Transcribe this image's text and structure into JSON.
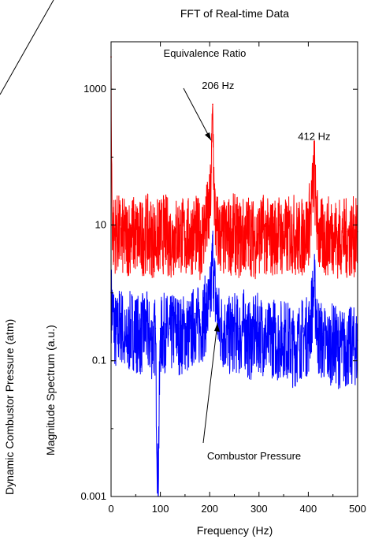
{
  "chart_data": {
    "type": "line",
    "title": "FFT of Real-time Data",
    "xlabel": "Frequency (Hz)",
    "ylabel_outer": "Dynamic Combustor Pressure (atm)",
    "ylabel_inner": "Magnitude Spectrum (a.u.)",
    "xlim": [
      0,
      500
    ],
    "ylim": [
      0.001,
      5000
    ],
    "yscale": "log",
    "grid": false,
    "x_ticks": [
      0,
      100,
      200,
      300,
      400,
      500
    ],
    "x_tick_labels": [
      "0",
      "100",
      "200",
      "300",
      "400",
      "500"
    ],
    "y_ticks": [
      0.001,
      0.1,
      10,
      1000
    ],
    "y_tick_labels": [
      "0.001",
      "0.1",
      "10",
      "1000"
    ],
    "series": [
      {
        "color": "#0000ff",
        "x": [
          0,
          10,
          20,
          30,
          40,
          50,
          60,
          70,
          80,
          90,
          95,
          100,
          110,
          120,
          130,
          140,
          150,
          160,
          170,
          180,
          190,
          200,
          203,
          206,
          209,
          212,
          220,
          230,
          240,
          250,
          260,
          270,
          280,
          290,
          300,
          310,
          320,
          330,
          340,
          350,
          360,
          370,
          380,
          390,
          400,
          405,
          409,
          412,
          415,
          420,
          430,
          440,
          450,
          460,
          470,
          480,
          490,
          500
        ],
        "values": [
          1,
          0.3,
          0.5,
          0.2,
          0.4,
          0.35,
          0.3,
          0.4,
          0.25,
          0.3,
          0.0015,
          0.3,
          0.35,
          0.3,
          0.4,
          0.3,
          0.35,
          0.3,
          0.5,
          0.4,
          0.6,
          0.8,
          1.5,
          5,
          2,
          1,
          0.4,
          0.35,
          0.3,
          0.35,
          0.3,
          0.4,
          0.25,
          0.3,
          0.35,
          0.3,
          0.25,
          0.3,
          0.25,
          0.3,
          0.25,
          0.2,
          0.25,
          0.3,
          0.3,
          0.5,
          1,
          1.5,
          0.8,
          0.3,
          0.25,
          0.2,
          0.25,
          0.2,
          0.2,
          0.2,
          0.22,
          0.2
        ]
      },
      {
        "color": "#ff0000",
        "x": [
          0,
          1,
          3,
          10,
          20,
          30,
          40,
          50,
          60,
          70,
          80,
          90,
          100,
          110,
          120,
          130,
          140,
          150,
          160,
          170,
          180,
          190,
          200,
          203,
          206,
          209,
          212,
          220,
          230,
          240,
          250,
          260,
          270,
          280,
          290,
          300,
          310,
          320,
          330,
          340,
          350,
          360,
          370,
          380,
          390,
          400,
          405,
          409,
          412,
          415,
          420,
          430,
          440,
          450,
          460,
          470,
          480,
          490,
          500
        ],
        "values": [
          3000,
          100,
          10,
          10,
          9,
          8,
          10,
          9,
          8,
          10,
          9,
          8,
          9,
          10,
          8,
          9,
          10,
          8,
          9,
          10,
          8,
          12,
          20,
          60,
          600,
          40,
          12,
          9,
          8,
          9,
          10,
          8,
          9,
          10,
          8,
          9,
          10,
          8,
          9,
          10,
          8,
          9,
          10,
          8,
          9,
          12,
          20,
          40,
          100,
          25,
          10,
          8,
          9,
          10,
          8,
          9,
          8,
          9,
          8
        ]
      }
    ],
    "annotations": [
      {
        "text": "Equivalence Ratio",
        "x": 190,
        "y": 3000
      },
      {
        "text": "206 Hz",
        "x": 217,
        "y": 1000
      },
      {
        "text": "412 Hz",
        "x": 412,
        "y": 180
      },
      {
        "text": "Combustor Pressure",
        "x": 290,
        "y": 0.0035
      }
    ]
  }
}
